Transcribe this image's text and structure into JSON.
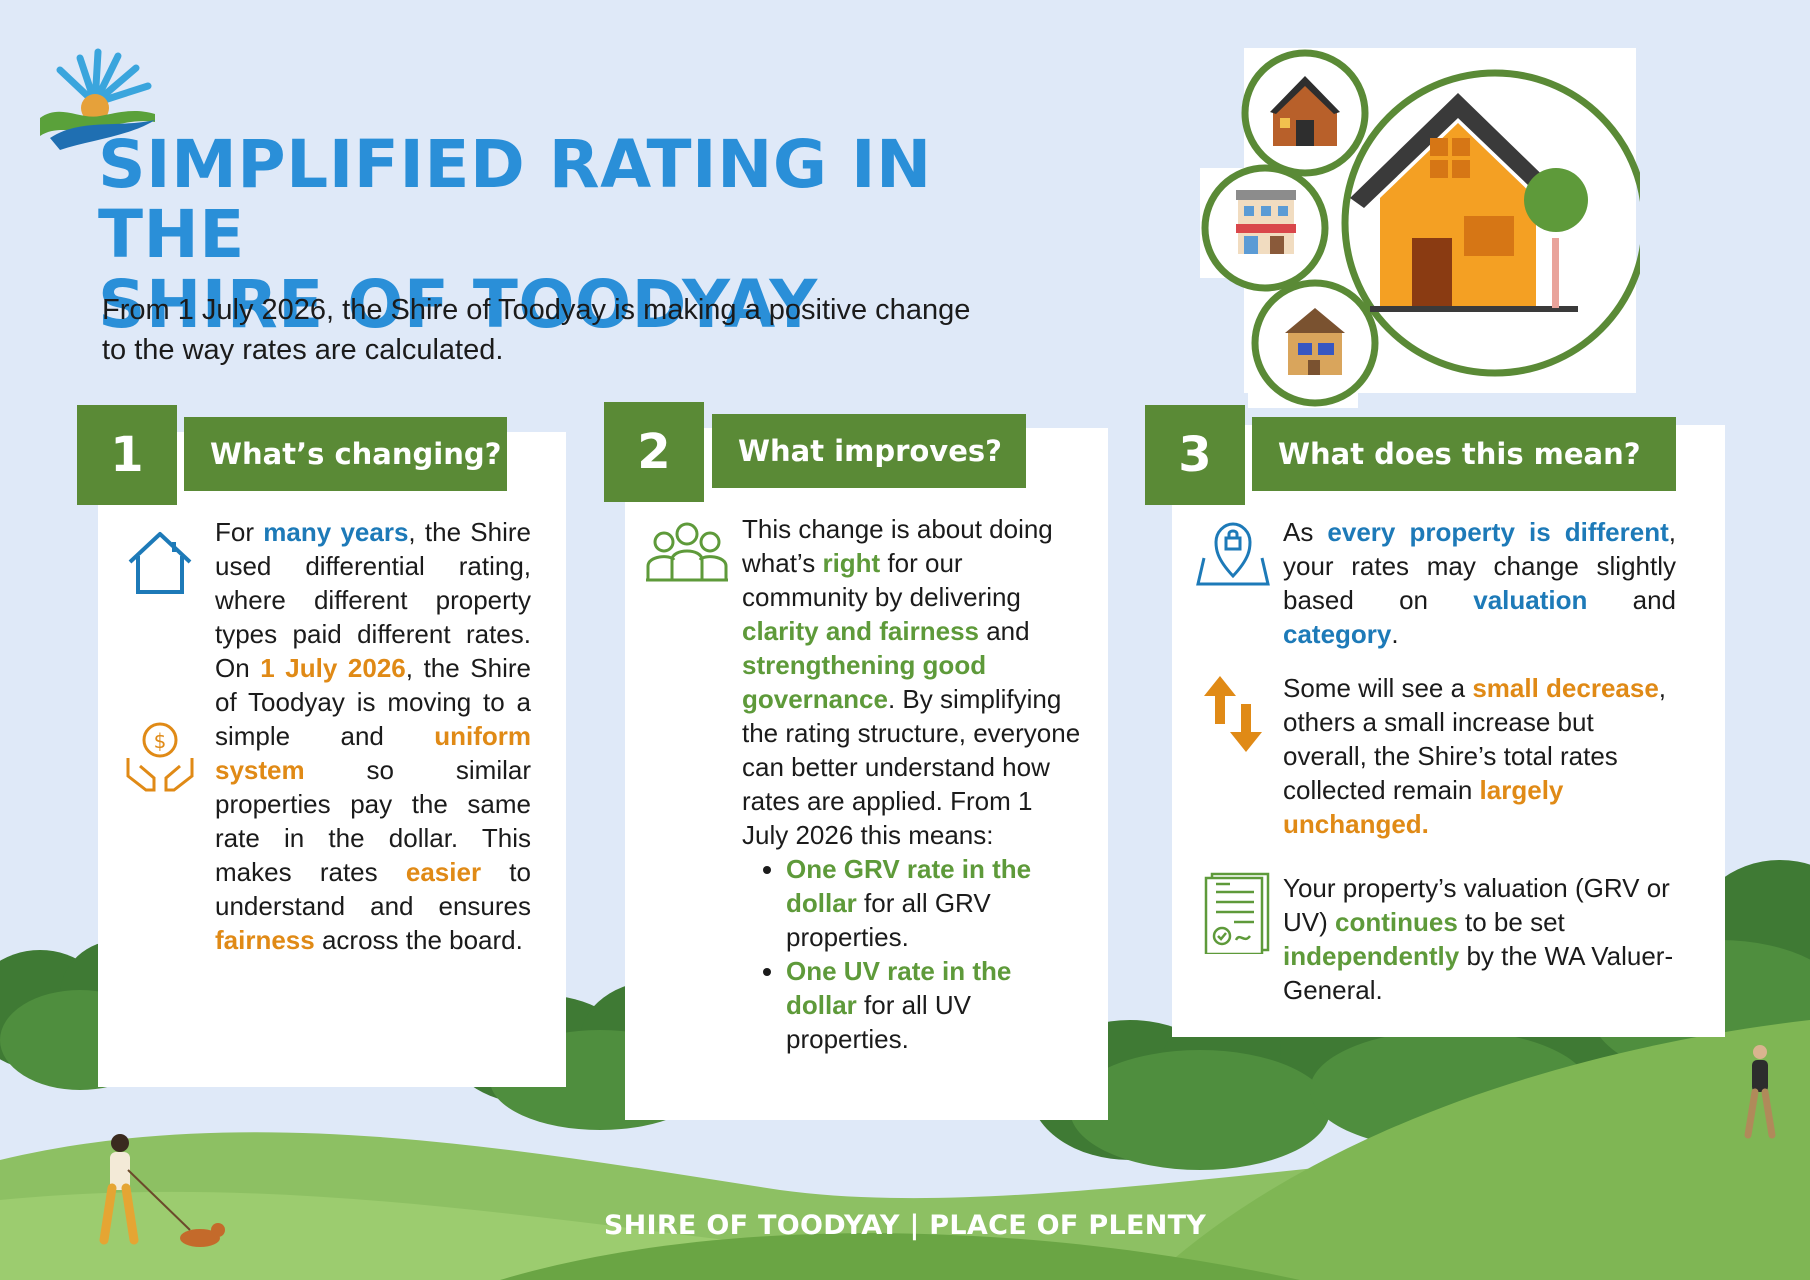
{
  "header": {
    "title_line1": "SIMPLIFIED RATING IN THE",
    "title_line2": "SHIRE OF TOODYAY",
    "intro": "From 1 July 2026, the Shire of Toodyay is making a positive change to the way rates are calculated."
  },
  "cards": [
    {
      "number": "1",
      "heading": "What’s changing?",
      "body": {
        "t1": "For ",
        "h1": "many years",
        "t2": ", the Shire used differential rating, where different property types paid different rates. On ",
        "h2": "1 July 2026",
        "t3": ", the Shire of Toodyay is moving to a simple and ",
        "h3": "uniform system",
        "t4": " so similar properties pay the same rate in the dollar. This makes rates ",
        "h4": "easier",
        "t5": " to understand and ensures ",
        "h5": "fairness",
        "t6": " across the board."
      }
    },
    {
      "number": "2",
      "heading": "What improves?",
      "body": {
        "t1": "This change is about doing what’s ",
        "h1": "right",
        "t2": " for our community by delivering ",
        "h2": "clarity and fairness",
        "t3": " and ",
        "h3": "strengthening good governance",
        "t4": ". By simplifying the rating structure, everyone can better understand how rates are applied. From 1 July 2026 this means:",
        "bullets": [
          {
            "strong": "One GRV rate in the dollar",
            "rest": " for all GRV properties."
          },
          {
            "strong": "One UV rate in the dollar",
            "rest": " for all UV properties."
          }
        ]
      }
    },
    {
      "number": "3",
      "heading": "What does this mean?",
      "p1": {
        "t1": "As ",
        "h1": "every property is different",
        "t2": ", your rates may change slightly based on ",
        "h2": "valuation",
        "t3": " and ",
        "h3": "category",
        "t4": "."
      },
      "p2": {
        "t1": "Some will see a ",
        "h1": "small decrease",
        "t2": ", others a small increase but overall, the Shire’s total rates collected remain ",
        "h2": "largely unchanged."
      },
      "p3": {
        "t1": "Your property’s valuation (GRV or UV) ",
        "h1": "continues",
        "t2": " to be set ",
        "h2": "independently",
        "t3": " by the WA Valuer-General."
      }
    }
  ],
  "footer": {
    "text": "SHIRE OF TOODYAY | PLACE OF PLENTY"
  },
  "icons": {
    "logo": "shire-logo-icon",
    "hero": "properties-illustration",
    "house": "house-icon",
    "money": "money-hands-icon",
    "people": "people-icon",
    "location": "location-map-icon",
    "arrows": "up-down-arrows-icon",
    "certificate": "certificate-icon"
  },
  "colors": {
    "background": "#dfe9f8",
    "title_blue": "#2a8fd8",
    "card_green": "#5a8a36",
    "highlight_blue": "#1d7ab8",
    "highlight_orange": "#e08a16",
    "highlight_green": "#5e9a3a"
  }
}
